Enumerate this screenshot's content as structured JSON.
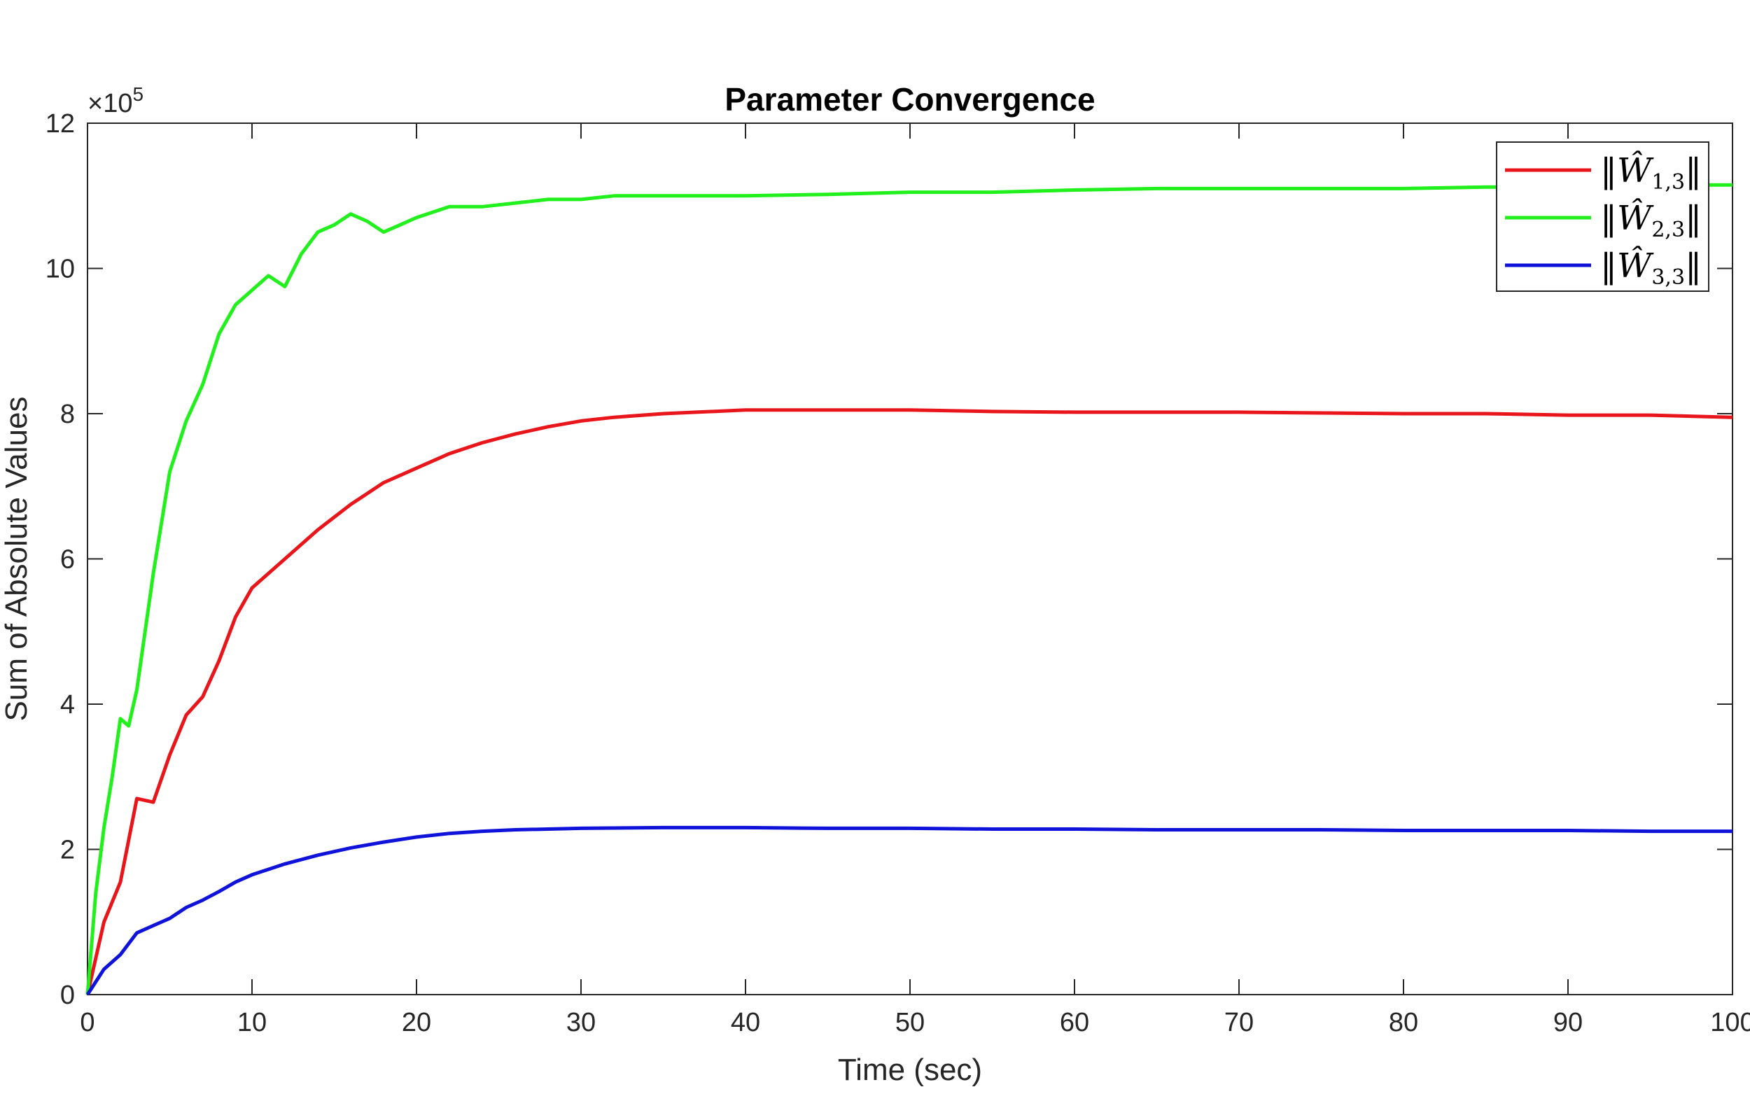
{
  "chart_data": {
    "type": "line",
    "title": "Parameter Convergence",
    "xlabel": "Time (sec)",
    "ylabel": "Sum of Absolute Values",
    "y_exponent_label": "×10",
    "y_exponent_power": "5",
    "xlim": [
      0,
      100
    ],
    "ylim": [
      0,
      12
    ],
    "y_scale_factor": 100000,
    "xticks": [
      "0",
      "10",
      "20",
      "30",
      "40",
      "50",
      "60",
      "70",
      "80",
      "90",
      "100"
    ],
    "yticks": [
      "0",
      "2",
      "4",
      "6",
      "8",
      "10",
      "12"
    ],
    "grid": false,
    "legend_position": "top-right",
    "series": [
      {
        "name": "‖Ŵ1,3‖",
        "legend_main": "‖Ŵ",
        "legend_sub": "1,3",
        "legend_close": "‖",
        "color": "#e8151b",
        "x": [
          0,
          1,
          2,
          3,
          4,
          5,
          6,
          7,
          8,
          9,
          10,
          12,
          14,
          16,
          18,
          20,
          22,
          24,
          26,
          28,
          30,
          32,
          35,
          40,
          45,
          50,
          55,
          60,
          65,
          70,
          75,
          80,
          85,
          90,
          95,
          100
        ],
        "y": [
          0,
          1.0,
          1.55,
          2.7,
          2.65,
          3.3,
          3.85,
          4.1,
          4.6,
          5.2,
          5.6,
          6.0,
          6.4,
          6.75,
          7.05,
          7.25,
          7.45,
          7.6,
          7.72,
          7.82,
          7.9,
          7.95,
          8.0,
          8.05,
          8.05,
          8.05,
          8.03,
          8.02,
          8.02,
          8.02,
          8.01,
          8.0,
          8.0,
          7.98,
          7.98,
          7.95
        ]
      },
      {
        "name": "‖Ŵ2,3‖",
        "legend_main": "‖Ŵ",
        "legend_sub": "2,3",
        "legend_close": "‖",
        "color": "#21f01c",
        "x": [
          0,
          0.5,
          1,
          1.5,
          2,
          2.5,
          3,
          4,
          5,
          6,
          7,
          8,
          9,
          10,
          11,
          12,
          13,
          14,
          15,
          16,
          17,
          18,
          19,
          20,
          22,
          24,
          26,
          28,
          30,
          32,
          35,
          40,
          45,
          50,
          55,
          60,
          65,
          70,
          75,
          80,
          85,
          90,
          95,
          100
        ],
        "y": [
          0,
          1.4,
          2.3,
          3.0,
          3.8,
          3.7,
          4.2,
          5.8,
          7.2,
          7.9,
          8.4,
          9.1,
          9.5,
          9.7,
          9.9,
          9.75,
          10.2,
          10.5,
          10.6,
          10.75,
          10.65,
          10.5,
          10.6,
          10.7,
          10.85,
          10.85,
          10.9,
          10.95,
          10.95,
          11.0,
          11.0,
          11.0,
          11.02,
          11.05,
          11.05,
          11.08,
          11.1,
          11.1,
          11.1,
          11.1,
          11.12,
          11.12,
          11.15,
          11.15
        ]
      },
      {
        "name": "‖Ŵ3,3‖",
        "legend_main": "‖Ŵ",
        "legend_sub": "3,3",
        "legend_close": "‖",
        "color": "#0f13d9",
        "x": [
          0,
          1,
          2,
          3,
          4,
          5,
          6,
          7,
          8,
          9,
          10,
          12,
          14,
          16,
          18,
          20,
          22,
          24,
          26,
          28,
          30,
          35,
          40,
          45,
          50,
          55,
          60,
          65,
          70,
          75,
          80,
          85,
          90,
          95,
          100
        ],
        "y": [
          0,
          0.35,
          0.55,
          0.85,
          0.95,
          1.05,
          1.2,
          1.3,
          1.42,
          1.55,
          1.65,
          1.8,
          1.92,
          2.02,
          2.1,
          2.17,
          2.22,
          2.25,
          2.27,
          2.28,
          2.29,
          2.3,
          2.3,
          2.29,
          2.29,
          2.28,
          2.28,
          2.27,
          2.27,
          2.27,
          2.26,
          2.26,
          2.26,
          2.25,
          2.25
        ]
      }
    ]
  }
}
